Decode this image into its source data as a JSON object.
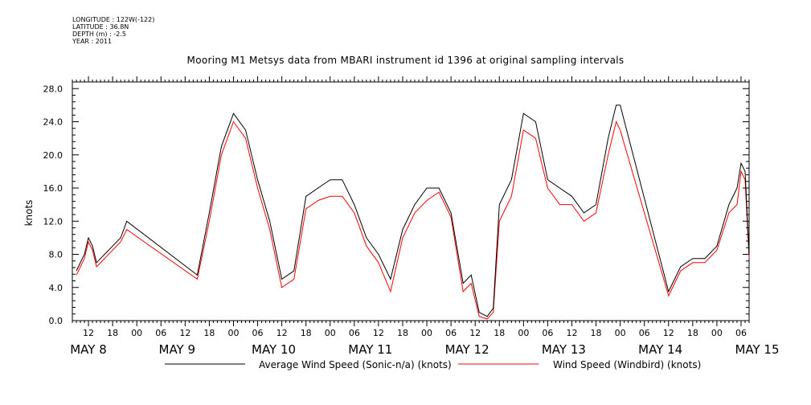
{
  "meta": {
    "longitude": "LONGITUDE : 122W(-122)",
    "latitude": "LATITUDE : 36.8N",
    "depth": "DEPTH (m) : -2.5",
    "year": "YEAR : 2011"
  },
  "title": "Mooring M1 Metsys data from MBARI instrument id 1396 at original sampling intervals",
  "colors": {
    "series_black": "#000000",
    "series_red": "#ff0000",
    "axis": "#000000",
    "background": "#ffffff"
  },
  "chart_data": {
    "type": "line",
    "title": "Mooring M1 Metsys data from MBARI instrument id 1396 at original sampling intervals",
    "xlabel": "",
    "ylabel": "knots",
    "ylim": [
      0,
      28.8
    ],
    "xlim": [
      "MAY 8 08:00",
      "MAY 15 08:00"
    ],
    "yticks": [
      "0.0",
      "4.0",
      "8.0",
      "12.0",
      "16.0",
      "20.0",
      "24.0",
      "28.0"
    ],
    "xticks_hour": [
      "12",
      "18",
      "00",
      "06",
      "12",
      "18",
      "00",
      "06",
      "12",
      "18",
      "00",
      "06",
      "12",
      "18",
      "00",
      "06",
      "12",
      "18",
      "00",
      "06",
      "12",
      "18",
      "00",
      "06",
      "12",
      "18",
      "00",
      "06"
    ],
    "xticks_day": [
      "MAY  8",
      "MAY  9",
      "MAY 10",
      "MAY 11",
      "MAY 12",
      "MAY 13",
      "MAY 14",
      "MAY 15"
    ],
    "grid": false,
    "legend": "bottom",
    "series": [
      {
        "name": "Average Wind Speed (Sonic-n/a) (knots)",
        "color": "#000000",
        "x": [
          "05-08 09:00",
          "05-08 11:00",
          "05-08 12:00",
          "05-08 13:00",
          "05-08 14:00",
          "05-08 16:00",
          "05-08 18:00",
          "05-08 20:00",
          "05-08 21:30",
          "05-09 15:00",
          "05-09 18:00",
          "05-09 21:00",
          "05-10 00:00",
          "05-10 03:00",
          "05-10 06:00",
          "05-10 09:00",
          "05-10 12:00",
          "05-10 15:00",
          "05-10 18:00",
          "05-10 21:00",
          "05-11 00:00",
          "05-11 03:00",
          "05-11 06:00",
          "05-11 09:00",
          "05-11 12:00",
          "05-11 15:00",
          "05-11 18:00",
          "05-11 21:00",
          "05-12 00:00",
          "05-12 03:00",
          "05-12 06:00",
          "05-12 09:00",
          "05-12 11:00",
          "05-12 13:00",
          "05-12 15:00",
          "05-12 16:30",
          "05-12 18:00",
          "05-12 21:00",
          "05-13 00:00",
          "05-13 03:00",
          "05-13 06:00",
          "05-13 09:00",
          "05-13 12:00",
          "05-13 15:00",
          "05-13 18:00",
          "05-13 21:00",
          "05-13 23:00",
          "05-14 00:00",
          "05-14 12:00",
          "05-14 15:00",
          "05-14 18:00",
          "05-14 21:00",
          "05-15 00:00",
          "05-15 03:00",
          "05-15 05:00",
          "05-15 06:00",
          "05-15 07:00",
          "05-15 08:00"
        ],
        "values": [
          6.0,
          8.0,
          10.0,
          9.0,
          7.0,
          8.0,
          9.0,
          10.0,
          12.0,
          5.5,
          13.0,
          21.0,
          25.0,
          23.0,
          17.0,
          12.0,
          5.0,
          6.0,
          15.0,
          16.0,
          17.0,
          17.0,
          14.0,
          10.0,
          8.0,
          5.0,
          11.0,
          14.0,
          16.0,
          16.0,
          13.0,
          4.5,
          5.5,
          1.0,
          0.5,
          1.5,
          14.0,
          17.0,
          25.0,
          24.0,
          17.0,
          16.0,
          15.0,
          13.0,
          14.0,
          22.0,
          26.0,
          26.0,
          3.5,
          6.5,
          7.5,
          7.5,
          9.0,
          14.0,
          16.0,
          19.0,
          18.0,
          8.0
        ]
      },
      {
        "name": "Wind Speed (Windbird) (knots)",
        "color": "#ff0000",
        "x": [
          "05-08 09:00",
          "05-08 11:00",
          "05-08 12:00",
          "05-08 13:00",
          "05-08 14:00",
          "05-08 16:00",
          "05-08 18:00",
          "05-08 20:00",
          "05-08 21:30",
          "05-09 15:00",
          "05-09 18:00",
          "05-09 21:00",
          "05-10 00:00",
          "05-10 03:00",
          "05-10 06:00",
          "05-10 09:00",
          "05-10 12:00",
          "05-10 15:00",
          "05-10 18:00",
          "05-10 21:00",
          "05-11 00:00",
          "05-11 03:00",
          "05-11 06:00",
          "05-11 09:00",
          "05-11 12:00",
          "05-11 15:00",
          "05-11 18:00",
          "05-11 21:00",
          "05-12 00:00",
          "05-12 03:00",
          "05-12 06:00",
          "05-12 09:00",
          "05-12 11:00",
          "05-12 13:00",
          "05-12 15:00",
          "05-12 16:30",
          "05-12 18:00",
          "05-12 21:00",
          "05-13 00:00",
          "05-13 03:00",
          "05-13 06:00",
          "05-13 09:00",
          "05-13 12:00",
          "05-13 15:00",
          "05-13 18:00",
          "05-13 21:00",
          "05-13 23:00",
          "05-14 00:00",
          "05-14 12:00",
          "05-14 15:00",
          "05-14 18:00",
          "05-14 21:00",
          "05-15 00:00",
          "05-15 03:00",
          "05-15 05:00",
          "05-15 06:00",
          "05-15 07:00",
          "05-15 08:00"
        ],
        "values": [
          5.5,
          7.5,
          9.5,
          8.5,
          6.5,
          7.5,
          8.5,
          9.5,
          11.0,
          5.0,
          12.0,
          20.0,
          24.0,
          22.0,
          16.0,
          11.0,
          4.0,
          5.0,
          13.5,
          14.5,
          15.0,
          15.0,
          13.0,
          9.0,
          7.0,
          3.5,
          10.0,
          13.0,
          14.5,
          15.5,
          12.5,
          3.5,
          4.5,
          0.5,
          0.2,
          1.0,
          12.0,
          15.0,
          23.0,
          22.0,
          16.0,
          14.0,
          14.0,
          12.0,
          13.0,
          20.0,
          24.0,
          23.0,
          3.0,
          6.0,
          7.0,
          7.0,
          8.5,
          13.0,
          14.0,
          18.0,
          17.0,
          7.5
        ]
      }
    ]
  }
}
